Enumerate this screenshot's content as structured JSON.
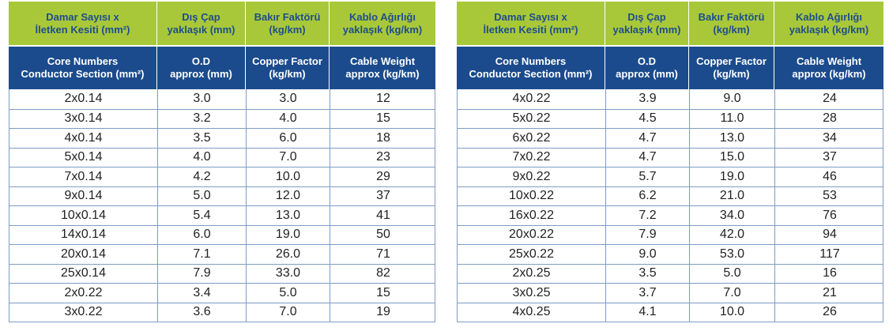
{
  "colors": {
    "header_top_bg": "#a8c83a",
    "header_top_text": "#1f4e8c",
    "header_bottom_bg": "#1b4b8c",
    "header_bottom_text": "#ffffff",
    "grid_line": "#7f9cc3"
  },
  "headers": {
    "tr": [
      "Damar Sayısı x\nİletken Kesiti (mm²)",
      "Dış Çap\nyaklaşık (mm)",
      "Bakır Faktörü\n(kg/km)",
      "Kablo Ağırlığı\nyaklaşık (kg/km)"
    ],
    "en": [
      "Core Numbers\nConductor Section (mm²)",
      "O.D\napprox (mm)",
      "Copper Factor\n(kg/km)",
      "Cable Weight\napprox (kg/km)"
    ]
  },
  "tables": [
    {
      "rows": [
        [
          "2x0.14",
          "3.0",
          "3.0",
          "12"
        ],
        [
          "3x0.14",
          "3.2",
          "4.0",
          "15"
        ],
        [
          "4x0.14",
          "3.5",
          "6.0",
          "18"
        ],
        [
          "5x0.14",
          "4.0",
          "7.0",
          "23"
        ],
        [
          "7x0.14",
          "4.2",
          "10.0",
          "29"
        ],
        [
          "9x0.14",
          "5.0",
          "12.0",
          "37"
        ],
        [
          "10x0.14",
          "5.4",
          "13.0",
          "41"
        ],
        [
          "14x0.14",
          "6.0",
          "19.0",
          "50"
        ],
        [
          "20x0.14",
          "7.1",
          "26.0",
          "71"
        ],
        [
          "25x0.14",
          "7.9",
          "33.0",
          "82"
        ],
        [
          "2x0.22",
          "3.4",
          "5.0",
          "15"
        ],
        [
          "3x0.22",
          "3.6",
          "7.0",
          "19"
        ]
      ]
    },
    {
      "rows": [
        [
          "4x0.22",
          "3.9",
          "9.0",
          "24"
        ],
        [
          "5x0.22",
          "4.5",
          "11.0",
          "28"
        ],
        [
          "6x0.22",
          "4.7",
          "13.0",
          "34"
        ],
        [
          "7x0.22",
          "4.7",
          "15.0",
          "37"
        ],
        [
          "9x0.22",
          "5.7",
          "19.0",
          "46"
        ],
        [
          "10x0.22",
          "6.2",
          "21.0",
          "53"
        ],
        [
          "16x0.22",
          "7.2",
          "34.0",
          "76"
        ],
        [
          "20x0.22",
          "7.9",
          "42.0",
          "94"
        ],
        [
          "25x0.22",
          "9.0",
          "53.0",
          "117"
        ],
        [
          "2x0.25",
          "3.5",
          "5.0",
          "16"
        ],
        [
          "3x0.25",
          "3.7",
          "7.0",
          "21"
        ],
        [
          "4x0.25",
          "4.1",
          "10.0",
          "26"
        ]
      ]
    }
  ]
}
